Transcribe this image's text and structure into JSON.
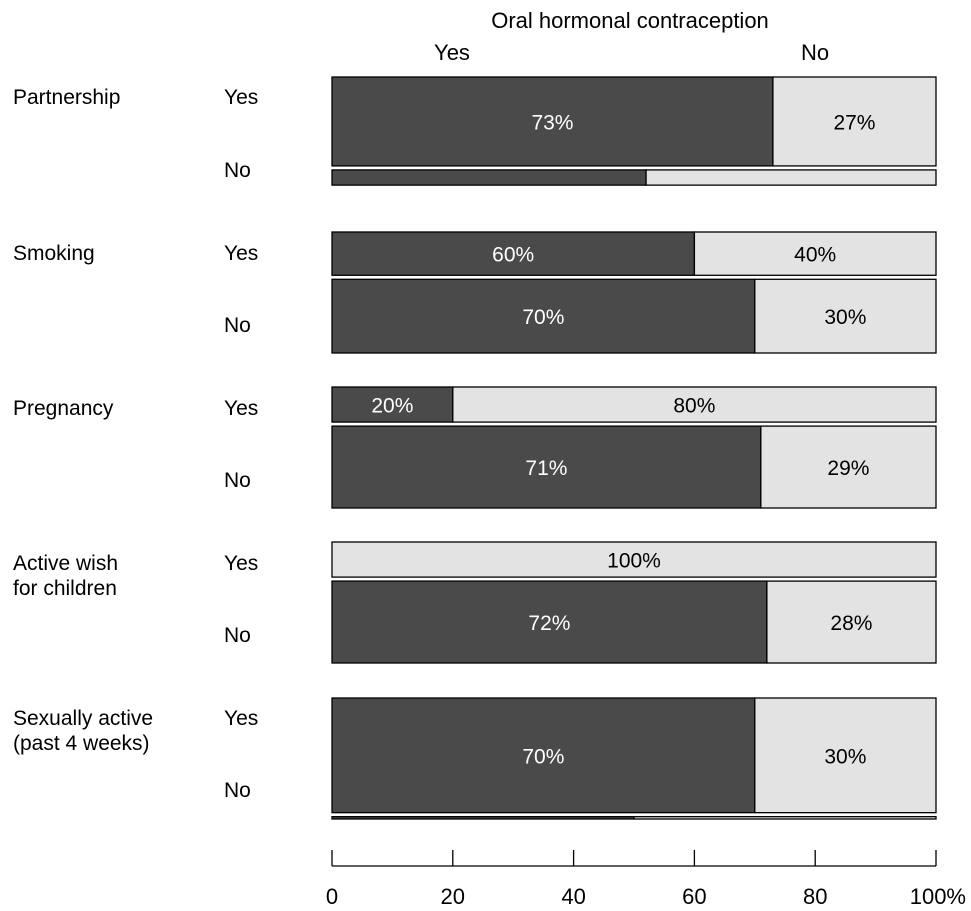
{
  "chart_data": {
    "type": "bar",
    "title": "Oral hormonal contraception",
    "legend_labels": [
      "Yes",
      "No"
    ],
    "colors": {
      "yes": "#4a4a4a",
      "no": "#e3e3e3",
      "border": "#000000"
    },
    "xlim": [
      0,
      100
    ],
    "x_ticks": [
      "0",
      "20",
      "40",
      "60",
      "80",
      "100%"
    ],
    "groups": [
      {
        "label": "Partnership",
        "rows": [
          {
            "label": "Yes",
            "yes": 73,
            "no": 27,
            "yes_label": "73%",
            "no_label": "27%",
            "weight": 0.76
          },
          {
            "label": "No",
            "yes": 52,
            "no": 48,
            "yes_label": "",
            "no_label": "",
            "weight": 0.13
          }
        ]
      },
      {
        "label": "Smoking",
        "rows": [
          {
            "label": "Yes",
            "yes": 60,
            "no": 40,
            "yes_label": "60%",
            "no_label": "40%",
            "weight": 0.37
          },
          {
            "label": "No",
            "yes": 70,
            "no": 30,
            "yes_label": "70%",
            "no_label": "30%",
            "weight": 0.63
          }
        ]
      },
      {
        "label": "Pregnancy",
        "rows": [
          {
            "label": "Yes",
            "yes": 20,
            "no": 80,
            "yes_label": "20%",
            "no_label": "80%",
            "weight": 0.3
          },
          {
            "label": "No",
            "yes": 71,
            "no": 29,
            "yes_label": "71%",
            "no_label": "29%",
            "weight": 0.7
          }
        ]
      },
      {
        "label": "Active wish\nfor children",
        "rows": [
          {
            "label": "Yes",
            "yes": 0,
            "no": 100,
            "yes_label": "",
            "no_label": "100%",
            "weight": 0.3
          },
          {
            "label": "No",
            "yes": 72,
            "no": 28,
            "yes_label": "72%",
            "no_label": "28%",
            "weight": 0.7
          }
        ]
      },
      {
        "label": "Sexually active\n(past 4 weeks)",
        "rows": [
          {
            "label": "Yes",
            "yes": 70,
            "no": 30,
            "yes_label": "70%",
            "no_label": "30%",
            "weight": 0.98
          },
          {
            "label": "No",
            "yes": 50,
            "no": 50,
            "yes_label": "",
            "no_label": "",
            "weight": 0.02
          }
        ]
      }
    ]
  }
}
